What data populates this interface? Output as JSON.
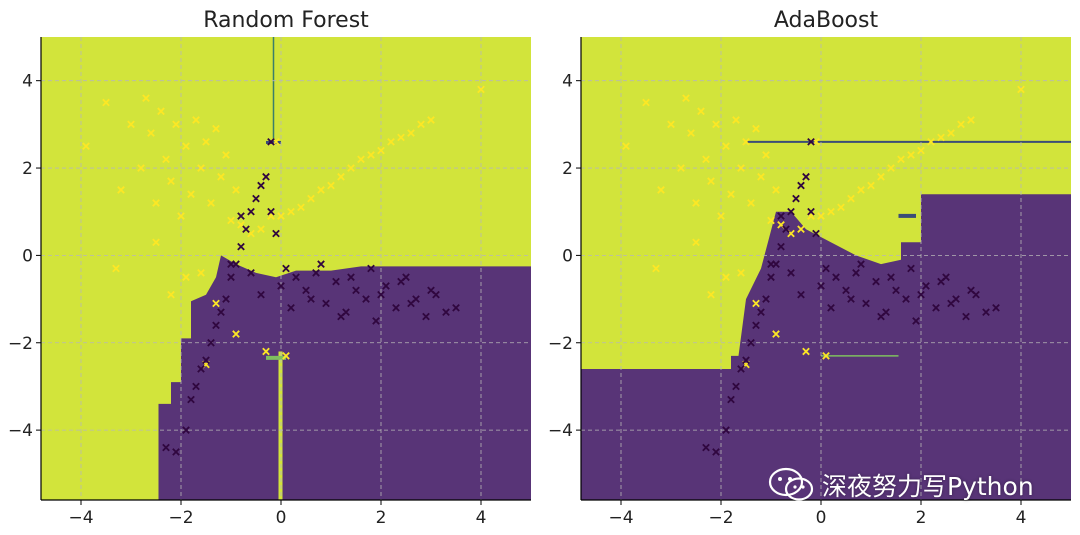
{
  "chart_data": [
    {
      "type": "scatter",
      "title": "Random Forest",
      "xlim": [
        -4.8,
        5.0
      ],
      "ylim": [
        -5.6,
        5.0
      ],
      "xticks": [
        -4,
        -2,
        0,
        2,
        4
      ],
      "yticks": [
        4,
        2,
        0,
        -2,
        -4
      ],
      "grid": true,
      "colors": {
        "region_yellow": "#d2e43b",
        "region_purple": "#583477",
        "point_yellow": "#fde725",
        "point_purple": "#30073f"
      },
      "series": [
        {
          "class": 1,
          "values_x": [
            -3.9,
            -3.5,
            -3.2,
            -3.0,
            -2.8,
            -2.7,
            -2.6,
            -2.5,
            -2.4,
            -2.3,
            -2.2,
            -2.1,
            -2.0,
            -1.9,
            -1.8,
            -1.7,
            -1.6,
            -1.5,
            -1.4,
            -1.3,
            -1.2,
            -1.1,
            -1.0,
            -0.9,
            -0.8,
            -0.6,
            -0.4,
            -0.2,
            0.0,
            0.2,
            0.4,
            0.6,
            0.8,
            1.0,
            1.2,
            1.4,
            1.6,
            1.8,
            2.0,
            2.2,
            2.4,
            2.6,
            2.8,
            3.0,
            4.0,
            -2.5,
            -2.2,
            -1.9,
            -1.6,
            -1.3,
            -3.3,
            -1.5,
            -0.9,
            -0.3,
            0.1,
            -0.1
          ],
          "values_y": [
            2.5,
            3.5,
            1.5,
            3.0,
            2.0,
            3.6,
            2.8,
            1.2,
            3.3,
            2.2,
            1.7,
            3.0,
            0.9,
            2.5,
            1.4,
            3.1,
            2.0,
            2.6,
            1.2,
            2.9,
            1.8,
            2.3,
            0.8,
            1.5,
            0.7,
            0.5,
            0.6,
            0.9,
            0.9,
            1.0,
            1.1,
            1.3,
            1.5,
            1.6,
            1.8,
            2.0,
            2.2,
            2.3,
            2.4,
            2.6,
            2.7,
            2.8,
            3.0,
            3.1,
            3.8,
            0.3,
            -0.9,
            -0.5,
            -0.4,
            -1.1,
            -0.3,
            -2.5,
            -1.8,
            -2.2,
            -2.3,
            2.6
          ]
        },
        {
          "class": 0,
          "values_x": [
            -2.3,
            -2.1,
            -1.9,
            -1.8,
            -1.7,
            -1.6,
            -1.5,
            -1.4,
            -1.3,
            -1.2,
            -1.1,
            -1.0,
            -0.9,
            -0.8,
            -0.7,
            -0.6,
            -0.5,
            -0.4,
            -0.3,
            -0.2,
            -0.1,
            0.1,
            0.3,
            0.5,
            0.7,
            0.9,
            1.1,
            1.3,
            1.5,
            1.7,
            1.9,
            2.1,
            2.3,
            2.5,
            2.7,
            2.9,
            3.1,
            3.3,
            3.5,
            -0.2,
            -0.8,
            -0.6,
            -0.4,
            -1.0,
            0.0,
            0.6,
            1.2,
            1.8,
            2.4,
            3.0,
            0.2,
            0.8,
            1.4,
            2.0,
            2.6
          ],
          "values_y": [
            -4.4,
            -4.5,
            -4.0,
            -3.3,
            -3.0,
            -2.6,
            -2.4,
            -2.0,
            -1.6,
            -1.3,
            -1.0,
            -0.5,
            -0.2,
            0.2,
            0.6,
            1.0,
            1.3,
            1.6,
            1.8,
            1.0,
            0.5,
            -0.3,
            -0.5,
            -0.8,
            -0.4,
            -1.1,
            -0.6,
            -1.3,
            -0.8,
            -1.0,
            -1.5,
            -0.7,
            -1.2,
            -0.5,
            -1.0,
            -1.4,
            -0.9,
            -1.3,
            -1.2,
            2.6,
            0.9,
            -0.4,
            -0.9,
            -0.2,
            -0.7,
            -1.0,
            -1.4,
            -0.3,
            -0.6,
            -0.8,
            -1.2,
            -0.2,
            -0.5,
            -0.9,
            -1.1
          ]
        }
      ]
    },
    {
      "type": "scatter",
      "title": "AdaBoost",
      "xlim": [
        -4.8,
        5.0
      ],
      "ylim": [
        -5.6,
        5.0
      ],
      "xticks": [
        -4,
        -2,
        0,
        2,
        4
      ],
      "yticks": [
        4,
        2,
        0,
        -2,
        -4
      ],
      "grid": true,
      "colors": {
        "region_yellow": "#d2e43b",
        "region_purple": "#583477",
        "point_yellow": "#fde725",
        "point_purple": "#30073f"
      },
      "series": [
        {
          "class": 1,
          "values_x": [
            -3.9,
            -3.5,
            -3.2,
            -3.0,
            -2.8,
            -2.7,
            -2.6,
            -2.5,
            -2.4,
            -2.3,
            -2.2,
            -2.1,
            -2.0,
            -1.9,
            -1.8,
            -1.7,
            -1.6,
            -1.5,
            -1.4,
            -1.3,
            -1.2,
            -1.1,
            -1.0,
            -0.9,
            -0.8,
            -0.6,
            -0.4,
            -0.2,
            0.0,
            0.2,
            0.4,
            0.6,
            0.8,
            1.0,
            1.2,
            1.4,
            1.6,
            1.8,
            2.0,
            2.2,
            2.4,
            2.6,
            2.8,
            3.0,
            4.0,
            -2.5,
            -2.2,
            -1.9,
            -1.6,
            -1.3,
            -3.3,
            -1.5,
            -0.9,
            -0.3,
            0.1,
            -0.1
          ],
          "values_y": [
            2.5,
            3.5,
            1.5,
            3.0,
            2.0,
            3.6,
            2.8,
            1.2,
            3.3,
            2.2,
            1.7,
            3.0,
            0.9,
            2.5,
            1.4,
            3.1,
            2.0,
            2.6,
            1.2,
            2.9,
            1.8,
            2.3,
            0.8,
            1.5,
            0.7,
            0.5,
            0.6,
            0.9,
            0.9,
            1.0,
            1.1,
            1.3,
            1.5,
            1.6,
            1.8,
            2.0,
            2.2,
            2.3,
            2.4,
            2.6,
            2.7,
            2.8,
            3.0,
            3.1,
            3.8,
            0.3,
            -0.9,
            -0.5,
            -0.4,
            -1.1,
            -0.3,
            -2.5,
            -1.8,
            -2.2,
            -2.3,
            2.6
          ]
        },
        {
          "class": 0,
          "values_x": [
            -2.3,
            -2.1,
            -1.9,
            -1.8,
            -1.7,
            -1.6,
            -1.5,
            -1.4,
            -1.3,
            -1.2,
            -1.1,
            -1.0,
            -0.9,
            -0.8,
            -0.7,
            -0.6,
            -0.5,
            -0.4,
            -0.3,
            -0.2,
            -0.1,
            0.1,
            0.3,
            0.5,
            0.7,
            0.9,
            1.1,
            1.3,
            1.5,
            1.7,
            1.9,
            2.1,
            2.3,
            2.5,
            2.7,
            2.9,
            3.1,
            3.3,
            3.5,
            -0.2,
            -0.8,
            -0.6,
            -0.4,
            -1.0,
            0.0,
            0.6,
            1.2,
            1.8,
            2.4,
            3.0,
            0.2,
            0.8,
            1.4,
            2.0,
            2.6
          ],
          "values_y": [
            -4.4,
            -4.5,
            -4.0,
            -3.3,
            -3.0,
            -2.6,
            -2.4,
            -2.0,
            -1.6,
            -1.3,
            -1.0,
            -0.5,
            -0.2,
            0.2,
            0.6,
            1.0,
            1.3,
            1.6,
            1.8,
            1.0,
            0.5,
            -0.3,
            -0.5,
            -0.8,
            -0.4,
            -1.1,
            -0.6,
            -1.3,
            -0.8,
            -1.0,
            -1.5,
            -0.7,
            -1.2,
            -0.5,
            -1.0,
            -1.4,
            -0.9,
            -1.3,
            -1.2,
            2.6,
            0.9,
            -0.4,
            -0.9,
            -0.2,
            -0.7,
            -1.0,
            -1.4,
            -0.3,
            -0.6,
            -0.8,
            -1.2,
            -0.2,
            -0.5,
            -0.9,
            -1.1
          ]
        }
      ]
    }
  ],
  "watermark": {
    "text": "深夜努力写Python",
    "icon": "wechat-icon"
  }
}
